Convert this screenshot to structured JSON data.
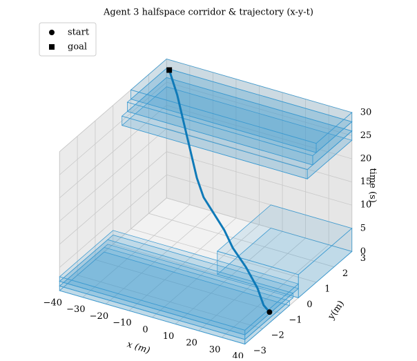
{
  "chart_data": {
    "type": "line3d",
    "title": "Agent 3 halfspace corridor & trajectory (x-y-t)",
    "xlabel": "x (m)",
    "ylabel": "y(m)",
    "zlabel": "time (s)",
    "xlim": [
      -40,
      40
    ],
    "ylim": [
      -3,
      3
    ],
    "zlim": [
      0,
      30
    ],
    "xticks": [
      {
        "value": -40,
        "label": "−40"
      },
      {
        "value": -30,
        "label": "−30"
      },
      {
        "value": -20,
        "label": "−20"
      },
      {
        "value": -10,
        "label": "−10"
      },
      0,
      10,
      20,
      30,
      40
    ],
    "yticks": [
      {
        "value": -3,
        "label": "−3"
      },
      {
        "value": -2,
        "label": "−2"
      },
      {
        "value": -1,
        "label": "−1"
      },
      0,
      1,
      2,
      3
    ],
    "zticks": [
      0,
      5,
      10,
      15,
      20,
      25,
      30
    ],
    "grid": true,
    "series": [
      {
        "color": "#0f7ab8",
        "x": [
          36,
          35,
          30,
          22,
          14,
          8,
          2,
          -4,
          -10,
          -15,
          -20,
          -25,
          -30,
          -35
        ],
        "y": [
          -1.1,
          -1.3,
          -1.0,
          -0.6,
          -0.3,
          0.0,
          0.2,
          0.4,
          0.8,
          1.2,
          1.6,
          2.0,
          2.3,
          2.5
        ],
        "t": [
          0,
          2,
          4,
          6,
          8,
          10,
          12,
          14,
          16,
          18,
          20,
          22,
          26,
          30
        ]
      }
    ],
    "markers": [
      {
        "name": "start",
        "marker": "circle",
        "color": "#000000"
      },
      {
        "name": "goal",
        "marker": "square",
        "color": "#000000"
      }
    ],
    "box_color": "#3d9bd1",
    "boxes": [
      {
        "xlim": [
          -40,
          40
        ],
        "ylim": [
          -3,
          -0.5
        ],
        "tlim": [
          0,
          1
        ]
      },
      {
        "xlim": [
          -40,
          40
        ],
        "ylim": [
          -3,
          -0.3
        ],
        "tlim": [
          1,
          2
        ]
      },
      {
        "xlim": [
          -40,
          40
        ],
        "ylim": [
          -3,
          0
        ],
        "tlim": [
          2,
          3
        ]
      },
      {
        "xlim": [
          5,
          40
        ],
        "ylim": [
          0,
          3
        ],
        "tlim": [
          0,
          5
        ]
      },
      {
        "xlim": [
          -40,
          40
        ],
        "ylim": [
          0.5,
          3
        ],
        "tlim": [
          24,
          26
        ]
      },
      {
        "xlim": [
          -40,
          40
        ],
        "ylim": [
          0.8,
          3
        ],
        "tlim": [
          26,
          28
        ]
      },
      {
        "xlim": [
          -40,
          40
        ],
        "ylim": [
          1,
          3
        ],
        "tlim": [
          28,
          30
        ]
      }
    ],
    "legend": "upper left"
  }
}
